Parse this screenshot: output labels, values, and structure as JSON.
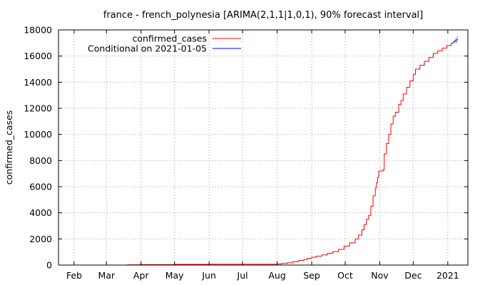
{
  "chart_data": {
    "type": "line",
    "title": "france - french_polynesia [ARIMA(2,1,1|1,0,1), 90% forecast interval]",
    "xlabel": "",
    "ylabel": "confirmed_cases",
    "ylim": [
      0,
      18000
    ],
    "y_ticks": [
      0,
      2000,
      4000,
      6000,
      8000,
      10000,
      12000,
      14000,
      16000,
      18000
    ],
    "xlim": [
      "2020-01-18",
      "2021-01-19"
    ],
    "x_ticks": [
      {
        "date": "2020-02-01",
        "label": "Feb"
      },
      {
        "date": "2020-03-01",
        "label": "Mar"
      },
      {
        "date": "2020-04-01",
        "label": "Apr"
      },
      {
        "date": "2020-05-01",
        "label": "May"
      },
      {
        "date": "2020-06-01",
        "label": "Jun"
      },
      {
        "date": "2020-07-01",
        "label": "Jul"
      },
      {
        "date": "2020-08-01",
        "label": "Aug"
      },
      {
        "date": "2020-09-01",
        "label": "Sep"
      },
      {
        "date": "2020-10-01",
        "label": "Oct"
      },
      {
        "date": "2020-11-01",
        "label": "Nov"
      },
      {
        "date": "2020-12-01",
        "label": "Dec"
      },
      {
        "date": "2021-01-01",
        "label": "2021"
      }
    ],
    "grid": true,
    "legend_position": "top-left",
    "series": [
      {
        "name": "confirmed_cases",
        "color": "#ff0000",
        "style": "step",
        "points": [
          [
            "2020-03-09",
            0
          ],
          [
            "2020-03-12",
            1
          ],
          [
            "2020-03-20",
            18
          ],
          [
            "2020-03-31",
            37
          ],
          [
            "2020-05-01",
            58
          ],
          [
            "2020-06-01",
            60
          ],
          [
            "2020-07-01",
            62
          ],
          [
            "2020-07-20",
            64
          ],
          [
            "2020-08-01",
            80
          ],
          [
            "2020-08-05",
            120
          ],
          [
            "2020-08-10",
            170
          ],
          [
            "2020-08-15",
            250
          ],
          [
            "2020-08-20",
            350
          ],
          [
            "2020-08-25",
            430
          ],
          [
            "2020-08-28",
            520
          ],
          [
            "2020-09-01",
            600
          ],
          [
            "2020-09-05",
            680
          ],
          [
            "2020-09-10",
            780
          ],
          [
            "2020-09-15",
            900
          ],
          [
            "2020-09-20",
            1030
          ],
          [
            "2020-09-25",
            1200
          ],
          [
            "2020-09-30",
            1450
          ],
          [
            "2020-10-05",
            1700
          ],
          [
            "2020-10-10",
            2000
          ],
          [
            "2020-10-13",
            2300
          ],
          [
            "2020-10-16",
            2700
          ],
          [
            "2020-10-18",
            3100
          ],
          [
            "2020-10-20",
            3500
          ],
          [
            "2020-10-22",
            3800
          ],
          [
            "2020-10-24",
            4500
          ],
          [
            "2020-10-26",
            5300
          ],
          [
            "2020-10-28",
            5900
          ],
          [
            "2020-10-29",
            6300
          ],
          [
            "2020-10-30",
            6700
          ],
          [
            "2020-10-31",
            7200
          ],
          [
            "2020-11-04",
            7300
          ],
          [
            "2020-11-05",
            8500
          ],
          [
            "2020-11-07",
            9300
          ],
          [
            "2020-11-09",
            10000
          ],
          [
            "2020-11-11",
            10800
          ],
          [
            "2020-11-13",
            11400
          ],
          [
            "2020-11-15",
            11700
          ],
          [
            "2020-11-18",
            12300
          ],
          [
            "2020-11-20",
            12600
          ],
          [
            "2020-11-22",
            13100
          ],
          [
            "2020-11-25",
            13600
          ],
          [
            "2020-11-28",
            14100
          ],
          [
            "2020-12-01",
            14600
          ],
          [
            "2020-12-03",
            15000
          ],
          [
            "2020-12-07",
            15300
          ],
          [
            "2020-12-11",
            15600
          ],
          [
            "2020-12-15",
            15900
          ],
          [
            "2020-12-19",
            16200
          ],
          [
            "2020-12-23",
            16400
          ],
          [
            "2020-12-27",
            16600
          ],
          [
            "2020-12-31",
            16800
          ],
          [
            "2021-01-04",
            16950
          ],
          [
            "2021-01-05",
            17000
          ]
        ]
      },
      {
        "name": "Conditional on 2021-01-05",
        "color": "#0000ff",
        "band_color": "#c8c8f0",
        "points": [
          [
            "2021-01-05",
            17000
          ],
          [
            "2021-01-06",
            17060
          ],
          [
            "2021-01-07",
            17120
          ],
          [
            "2021-01-08",
            17180
          ],
          [
            "2021-01-09",
            17240
          ],
          [
            "2021-01-10",
            17300
          ]
        ],
        "lower": [
          17000,
          16980,
          16970,
          16970,
          16980,
          17000
        ],
        "upper": [
          17000,
          17140,
          17270,
          17390,
          17500,
          17600
        ]
      }
    ]
  }
}
